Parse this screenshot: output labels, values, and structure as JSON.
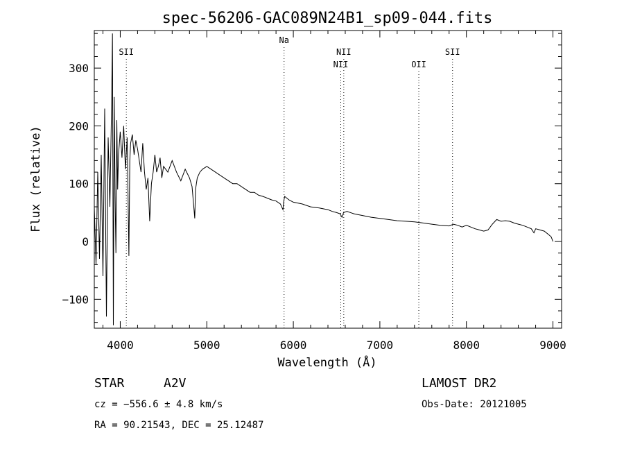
{
  "chart_data": {
    "type": "line",
    "title": "spec-56206-GAC089N24B1_sp09-044.fits",
    "xlabel": "Wavelength (Å)",
    "ylabel": "Flux (relative)",
    "xlim": [
      3700,
      9100
    ],
    "ylim": [
      -150,
      365
    ],
    "xticks": [
      4000,
      5000,
      6000,
      7000,
      8000,
      9000
    ],
    "yticks": [
      -100,
      0,
      100,
      200,
      300
    ],
    "grid": false,
    "line_color": "#000000",
    "series": [
      {
        "x": [
          3700,
          3720,
          3740,
          3760,
          3780,
          3800,
          3820,
          3840,
          3860,
          3880,
          3900,
          3910,
          3920,
          3930,
          3940,
          3950,
          3960,
          3970,
          3980,
          3990,
          4000,
          4020,
          4040,
          4060,
          4080,
          4090,
          4100,
          4110,
          4120,
          4140,
          4160,
          4180,
          4200,
          4220,
          4240,
          4260,
          4280,
          4300,
          4320,
          4340,
          4360,
          4380,
          4400,
          4420,
          4440,
          4460,
          4480,
          4500,
          4550,
          4600,
          4650,
          4700,
          4750,
          4800,
          4830,
          4850,
          4861,
          4870,
          4890,
          4920,
          4950,
          5000,
          5050,
          5100,
          5150,
          5200,
          5250,
          5300,
          5350,
          5400,
          5450,
          5500,
          5550,
          5600,
          5650,
          5700,
          5750,
          5800,
          5850,
          5880,
          5890,
          5900,
          5950,
          6000,
          6100,
          6200,
          6300,
          6400,
          6450,
          6500,
          6540,
          6563,
          6580,
          6620,
          6700,
          6800,
          6900,
          7000,
          7100,
          7200,
          7300,
          7400,
          7500,
          7600,
          7700,
          7800,
          7850,
          7900,
          7950,
          8000,
          8050,
          8100,
          8150,
          8200,
          8250,
          8300,
          8350,
          8400,
          8450,
          8500,
          8550,
          8600,
          8650,
          8700,
          8750,
          8780,
          8800,
          8850,
          8900,
          8950,
          8980,
          9000
        ],
        "y": [
          60,
          -40,
          120,
          -30,
          150,
          -60,
          230,
          -130,
          180,
          60,
          240,
          360,
          -145,
          250,
          80,
          -20,
          210,
          90,
          150,
          170,
          190,
          145,
          200,
          125,
          180,
          80,
          -25,
          140,
          170,
          185,
          150,
          175,
          160,
          140,
          120,
          170,
          120,
          90,
          110,
          35,
          100,
          120,
          150,
          120,
          130,
          145,
          110,
          130,
          120,
          140,
          120,
          105,
          125,
          110,
          95,
          60,
          40,
          90,
          110,
          120,
          125,
          130,
          125,
          120,
          115,
          110,
          105,
          100,
          100,
          95,
          90,
          85,
          85,
          80,
          78,
          75,
          72,
          70,
          65,
          55,
          70,
          78,
          72,
          68,
          65,
          60,
          58,
          55,
          52,
          50,
          48,
          42,
          50,
          52,
          48,
          45,
          42,
          40,
          38,
          36,
          35,
          34,
          32,
          30,
          28,
          27,
          30,
          28,
          25,
          28,
          25,
          22,
          20,
          18,
          20,
          30,
          38,
          35,
          36,
          35,
          32,
          30,
          28,
          25,
          22,
          15,
          22,
          20,
          18,
          12,
          8,
          0
        ]
      }
    ],
    "annotations": [
      {
        "label": "SII",
        "x": 4070,
        "level": "upper"
      },
      {
        "label": "Na",
        "x": 5893,
        "level": "top"
      },
      {
        "label": "NII",
        "x": 6583,
        "level": "upper"
      },
      {
        "label": "NII",
        "x": 6548,
        "level": "lower"
      },
      {
        "label": "OII",
        "x": 7450,
        "level": "lower"
      },
      {
        "label": "SII",
        "x": 7840,
        "level": "upper"
      }
    ]
  },
  "info": {
    "object_type": "STAR",
    "subclass": "A2V",
    "survey": "LAMOST DR2",
    "redshift": "cz = −556.6 ± 4.8 km/s",
    "obs_date": "Obs-Date: 20121005",
    "coords": "RA =  90.21543, DEC =  25.12487"
  }
}
